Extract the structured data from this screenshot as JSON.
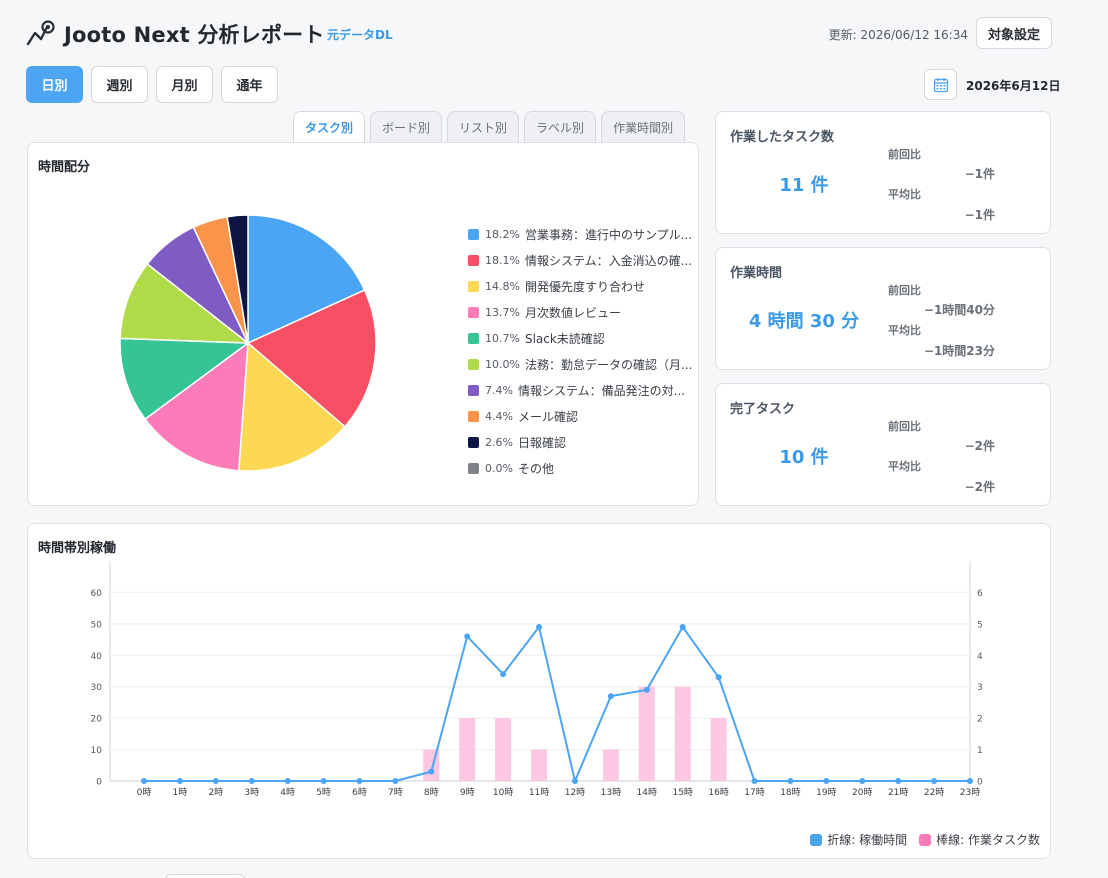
{
  "header": {
    "title": "Jooto Next 分析レポート",
    "download_link": "元データDL",
    "updated": "更新: 2026/06/12 16:34",
    "target_button": "対象設定"
  },
  "period_tabs": [
    {
      "label": "日別",
      "active": true
    },
    {
      "label": "週別",
      "active": false
    },
    {
      "label": "月別",
      "active": false
    },
    {
      "label": "通年",
      "active": false
    }
  ],
  "date_label": "2026年6月12日",
  "view_tabs": [
    {
      "label": "タスク別",
      "active": true
    },
    {
      "label": "ボード別",
      "active": false
    },
    {
      "label": "リスト別",
      "active": false
    },
    {
      "label": "ラベル別",
      "active": false
    },
    {
      "label": "作業時間別",
      "active": false
    }
  ],
  "pie_card": {
    "title": "時間配分"
  },
  "stats": [
    {
      "label": "作業したタスク数",
      "value": "11 件",
      "prev_label": "前回比",
      "prev_value": "−1件",
      "avg_label": "平均比",
      "avg_value": "−1件"
    },
    {
      "label": "作業時間",
      "value": "4 時間 30 分",
      "prev_label": "前回比",
      "prev_value": "−1時間40分",
      "avg_label": "平均比",
      "avg_value": "−1時間23分"
    },
    {
      "label": "完了タスク",
      "value": "10 件",
      "prev_label": "前回比",
      "prev_value": "−2件",
      "avg_label": "平均比",
      "avg_value": "−2件"
    }
  ],
  "bar_card": {
    "title": "時間帯別稼働",
    "legend_line": "折線: 稼働時間",
    "legend_bar": "棒線: 作業タスク数"
  },
  "colors": {
    "accent": "#4ba5f2",
    "line": "#4ba5f2",
    "bar": "#fcc7e2"
  },
  "chart_data": [
    {
      "type": "pie",
      "title": "時間配分",
      "slices": [
        {
          "label": "営業事務：進行中のサンプル...",
          "pct_label": "18.2%",
          "value": 18.2,
          "color": "#4ba5f5"
        },
        {
          "label": "情報システム：入金消込の確...",
          "pct_label": "18.1%",
          "value": 18.1,
          "color": "#f74f63"
        },
        {
          "label": "開発優先度すり合わせ",
          "pct_label": "14.8%",
          "value": 14.8,
          "color": "#fdd855"
        },
        {
          "label": "月次数値レビュー",
          "pct_label": "13.7%",
          "value": 13.7,
          "color": "#fc7cba"
        },
        {
          "label": "Slack未読確認",
          "pct_label": "10.7%",
          "value": 10.7,
          "color": "#34c495"
        },
        {
          "label": "法務：勤怠データの確認（月...",
          "pct_label": "10.0%",
          "value": 10.0,
          "color": "#afdb48"
        },
        {
          "label": "情報システム：備品発注の対...",
          "pct_label": "7.4%",
          "value": 7.4,
          "color": "#7e5cc4"
        },
        {
          "label": "メール確認",
          "pct_label": "4.4%",
          "value": 4.4,
          "color": "#fa944a"
        },
        {
          "label": "日報確認",
          "pct_label": "2.6%",
          "value": 2.6,
          "color": "#0d1544"
        },
        {
          "label": "その他",
          "pct_label": "0.0%",
          "value": 0.0,
          "color": "#7f8289"
        }
      ]
    },
    {
      "type": "line",
      "title": "時間帯別稼働",
      "categories": [
        "0時",
        "1時",
        "2時",
        "3時",
        "4時",
        "5時",
        "6時",
        "7時",
        "8時",
        "9時",
        "10時",
        "11時",
        "12時",
        "13時",
        "14時",
        "15時",
        "16時",
        "17時",
        "18時",
        "19時",
        "20時",
        "21時",
        "22時",
        "23時"
      ],
      "y_left_ticks": [
        0,
        10,
        20,
        30,
        40,
        50,
        60
      ],
      "y_right_ticks": [
        0,
        1,
        2,
        3,
        4,
        5,
        6
      ],
      "ylim_left": [
        0,
        70
      ],
      "ylim_right": [
        0,
        7
      ],
      "series": [
        {
          "name": "折線: 稼働時間",
          "kind": "line",
          "axis": "left",
          "values": [
            0,
            0,
            0,
            0,
            0,
            0,
            0,
            0,
            3,
            46,
            34,
            49,
            0,
            27,
            29,
            49,
            33,
            0,
            0,
            0,
            0,
            0,
            0,
            0
          ]
        },
        {
          "name": "棒線: 作業タスク数",
          "kind": "bar",
          "axis": "right",
          "values": [
            0,
            0,
            0,
            0,
            0,
            0,
            0,
            0,
            1,
            2,
            2,
            1,
            0,
            1,
            3,
            3,
            2,
            0,
            0,
            0,
            0,
            0,
            0,
            0
          ]
        }
      ],
      "grid": true,
      "legend_position": "bottom-right"
    }
  ]
}
